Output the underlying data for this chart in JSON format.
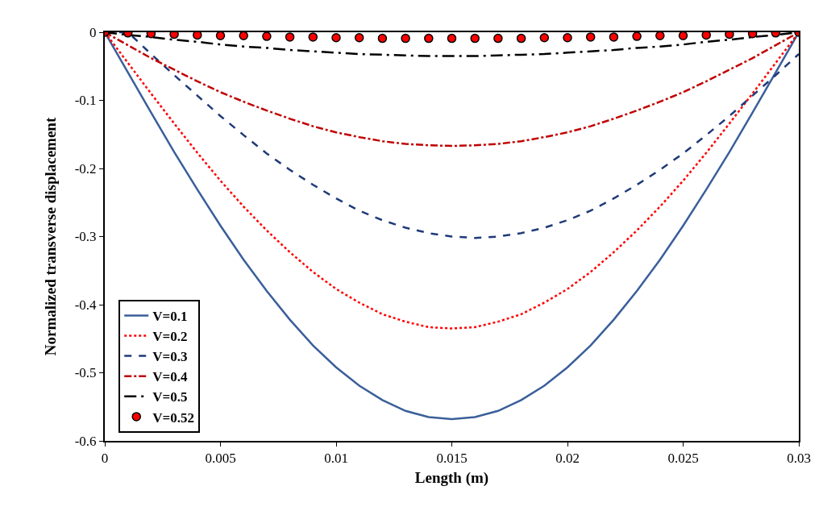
{
  "chart_data": {
    "type": "line",
    "xlabel": "Length (m)",
    "ylabel": "Normalized transverse displacement",
    "x": [
      0,
      0.001,
      0.002,
      0.003,
      0.004,
      0.005,
      0.006,
      0.007,
      0.008,
      0.009,
      0.01,
      0.011,
      0.012,
      0.013,
      0.014,
      0.015,
      0.016,
      0.017,
      0.018,
      0.019,
      0.02,
      0.021,
      0.022,
      0.023,
      0.024,
      0.025,
      0.026,
      0.027,
      0.028,
      0.029,
      0.03
    ],
    "series": [
      {
        "name": "V=0.1",
        "color": "#3a5f9a",
        "line_style": "solid",
        "values": [
          0,
          -0.059,
          -0.118,
          -0.176,
          -0.231,
          -0.284,
          -0.334,
          -0.38,
          -0.422,
          -0.46,
          -0.492,
          -0.519,
          -0.54,
          -0.556,
          -0.565,
          -0.568,
          -0.565,
          -0.556,
          -0.54,
          -0.519,
          -0.492,
          -0.46,
          -0.422,
          -0.38,
          -0.334,
          -0.284,
          -0.231,
          -0.176,
          -0.118,
          -0.059,
          0
        ]
      },
      {
        "name": "V=0.2",
        "color": "#ff0000",
        "line_style": "dotted",
        "values": [
          0,
          -0.045,
          -0.09,
          -0.134,
          -0.177,
          -0.218,
          -0.256,
          -0.291,
          -0.323,
          -0.352,
          -0.377,
          -0.397,
          -0.414,
          -0.425,
          -0.433,
          -0.435,
          -0.433,
          -0.425,
          -0.414,
          -0.397,
          -0.377,
          -0.352,
          -0.323,
          -0.291,
          -0.256,
          -0.218,
          -0.177,
          -0.134,
          -0.09,
          -0.045,
          0
        ]
      },
      {
        "name": "V=0.3",
        "color": "#1f3a78",
        "line_style": "dashed",
        "values": [
          0,
          0,
          -0.032,
          -0.063,
          -0.093,
          -0.123,
          -0.151,
          -0.178,
          -0.202,
          -0.224,
          -0.244,
          -0.262,
          -0.276,
          -0.287,
          -0.295,
          -0.3,
          -0.302,
          -0.3,
          -0.295,
          -0.287,
          -0.276,
          -0.262,
          -0.244,
          -0.224,
          -0.202,
          -0.178,
          -0.151,
          -0.123,
          -0.093,
          -0.063,
          -0.032
        ]
      },
      {
        "name": "V=0.4",
        "color": "#c00000",
        "line_style": "dashdot",
        "values": [
          0,
          -0.019,
          -0.038,
          -0.055,
          -0.072,
          -0.088,
          -0.102,
          -0.115,
          -0.127,
          -0.138,
          -0.147,
          -0.154,
          -0.16,
          -0.164,
          -0.166,
          -0.167,
          -0.166,
          -0.164,
          -0.16,
          -0.154,
          -0.147,
          -0.138,
          -0.127,
          -0.115,
          -0.102,
          -0.088,
          -0.072,
          -0.055,
          -0.038,
          -0.019,
          0
        ]
      },
      {
        "name": "V=0.5",
        "color": "#000000",
        "line_style": "longdashdot",
        "values": [
          0,
          -0.004,
          -0.007,
          -0.011,
          -0.014,
          -0.018,
          -0.021,
          -0.023,
          -0.026,
          -0.028,
          -0.03,
          -0.032,
          -0.033,
          -0.034,
          -0.035,
          -0.035,
          -0.035,
          -0.034,
          -0.033,
          -0.032,
          -0.03,
          -0.028,
          -0.026,
          -0.023,
          -0.021,
          -0.018,
          -0.014,
          -0.011,
          -0.007,
          -0.004,
          0
        ]
      },
      {
        "name": "V=0.52",
        "type": "scatter",
        "marker": "circle",
        "color": "#ff0000",
        "values": [
          0,
          -0.001,
          -0.002,
          -0.003,
          -0.004,
          -0.005,
          -0.005,
          -0.006,
          -0.007,
          -0.007,
          -0.008,
          -0.008,
          -0.009,
          -0.009,
          -0.009,
          -0.009,
          -0.009,
          -0.009,
          -0.009,
          -0.008,
          -0.008,
          -0.007,
          -0.007,
          -0.006,
          -0.005,
          -0.005,
          -0.004,
          -0.003,
          -0.002,
          -0.001,
          0
        ]
      }
    ],
    "xlim": [
      0,
      0.03
    ],
    "xticks": [
      0,
      0.005,
      0.01,
      0.015,
      0.02,
      0.025,
      0.03
    ],
    "ylim": [
      -0.6,
      0
    ],
    "yticks": [
      -0.6,
      -0.5,
      -0.4,
      -0.3,
      -0.2,
      -0.1,
      0
    ],
    "grid": false,
    "legend": "bottom left"
  }
}
